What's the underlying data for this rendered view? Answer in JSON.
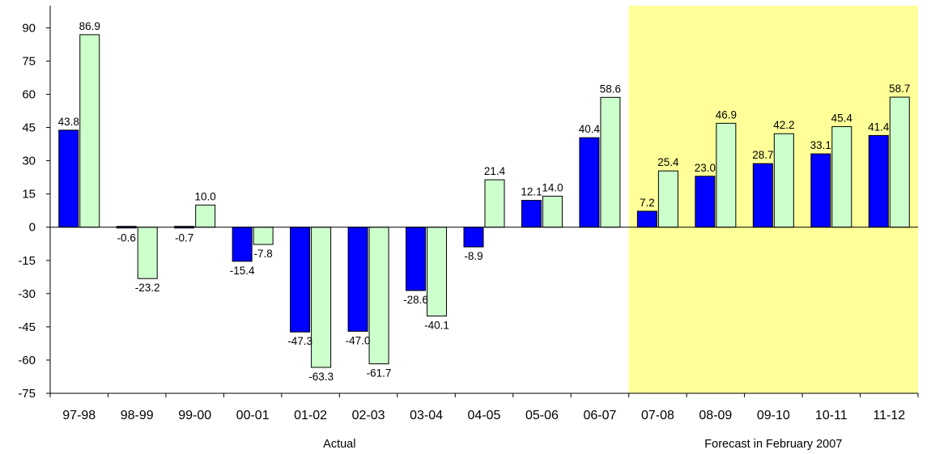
{
  "chart_data": {
    "type": "bar",
    "categories": [
      "97-98",
      "98-99",
      "99-00",
      "00-01",
      "01-02",
      "02-03",
      "03-04",
      "04-05",
      "05-06",
      "06-07",
      "07-08",
      "08-09",
      "09-10",
      "10-11",
      "11-12"
    ],
    "series": [
      {
        "color": "#0000ff",
        "values": [
          43.8,
          -0.6,
          -0.7,
          -15.4,
          -47.3,
          -47.0,
          -28.6,
          -8.9,
          12.1,
          40.4,
          7.2,
          23.0,
          28.7,
          33.1,
          41.4
        ],
        "labels": [
          "43.8",
          "-0.6",
          "-0.7",
          "-15.4",
          "-47.3",
          "-47.0",
          "-28.6",
          "-8.9",
          "12.1",
          "40.4",
          "7.2",
          "23.0",
          "28.7",
          "33.1",
          "41.4"
        ]
      },
      {
        "color": "#ccffcc",
        "values": [
          86.9,
          -23.2,
          10.0,
          -7.8,
          -63.3,
          -61.7,
          -40.1,
          21.4,
          14.0,
          58.6,
          25.4,
          46.9,
          42.2,
          45.4,
          58.7
        ],
        "labels": [
          "86.9",
          "-23.2",
          "10.0",
          "-7.8",
          "-63.3",
          "-61.7",
          "-40.1",
          "21.4",
          "14.0",
          "58.6",
          "25.4",
          "46.9",
          "42.2",
          "45.4",
          "58.7"
        ]
      }
    ],
    "ylim": [
      -75,
      100
    ],
    "yticks": [
      90,
      75,
      60,
      45,
      30,
      15,
      0,
      -15,
      -30,
      -45,
      -60,
      -75
    ],
    "ytick_labels": [
      "90",
      "75",
      "60",
      "45",
      "30",
      "15",
      "0",
      "-15",
      "-30",
      "-45",
      "-60",
      "-75"
    ],
    "grid": false,
    "legend": "none",
    "forecast_highlight": {
      "start_category": "07-08",
      "end_category": "11-12",
      "color": "#ffff99"
    },
    "group_labels": [
      {
        "text": "Actual",
        "from": "97-98",
        "to": "06-07"
      },
      {
        "text": "Forecast in February 2007",
        "from": "07-08",
        "to": "11-12"
      }
    ],
    "xlabel": "",
    "ylabel": "",
    "title": ""
  }
}
